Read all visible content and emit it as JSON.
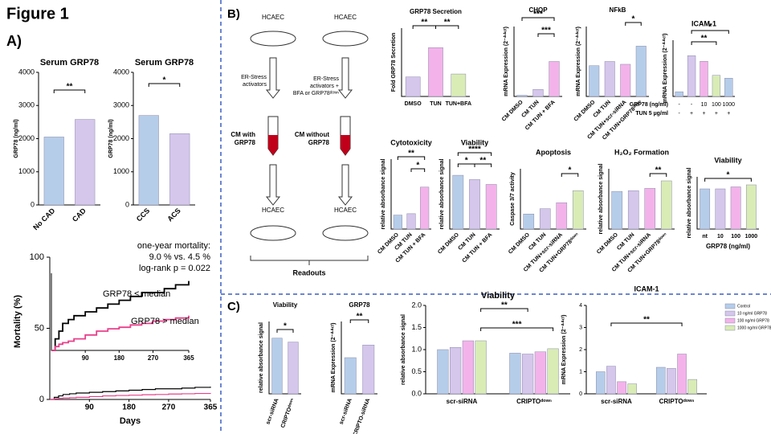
{
  "figure_title": "Figure 1",
  "panel_labels": [
    "A)",
    "B)",
    "C)"
  ],
  "schematic": {
    "top_left": "HCAEC",
    "top_right": "HCAEC",
    "arrow_left": [
      "ER-Stress",
      "activators"
    ],
    "arrow_right": [
      "ER-Stress",
      "activators +",
      "BFA or GRP78ᵈᵒʷⁿ"
    ],
    "cm_left": [
      "CM with",
      "GRP78"
    ],
    "cm_right": [
      "CM without",
      "GRP78"
    ],
    "bottom_left": "HCAEC",
    "bottom_right": "HCAEC",
    "readouts": "Readouts"
  },
  "legend": {
    "names": [
      "Control",
      "10 ng/ml GRP78",
      "100 ng/ml GRP78",
      "1000 ng/ml GRP78"
    ],
    "colors": [
      "#b6cdea",
      "#d5c6ec",
      "#f3b3ea",
      "#d9ecb6"
    ]
  },
  "chart_data": [
    {
      "type": "bar",
      "title": "Serum GRP78",
      "ylabel": "GRP78 (ng/ml)",
      "categories": [
        "No CAD",
        "CAD"
      ],
      "values": [
        2050,
        2580
      ],
      "colors": [
        "#b6cdea",
        "#d5c6ec"
      ],
      "ylim": [
        0,
        4000
      ],
      "yticks": [
        0,
        1000,
        2000,
        3000,
        4000
      ],
      "significance": [
        "**"
      ]
    },
    {
      "type": "bar",
      "title": "Serum GRP78",
      "ylabel": "GRP78 (ng/ml)",
      "categories": [
        "CCS",
        "ACS"
      ],
      "values": [
        2700,
        2150
      ],
      "colors": [
        "#b6cdea",
        "#d5c6ec"
      ],
      "ylim": [
        0,
        4000
      ],
      "yticks": [
        0,
        1000,
        2000,
        3000,
        4000
      ],
      "significance": [
        "*"
      ]
    },
    {
      "type": "line",
      "ylabel": "Mortality (%)",
      "xlabel": "Days",
      "x": [
        0,
        10,
        20,
        30,
        45,
        60,
        90,
        120,
        150,
        180,
        210,
        240,
        270,
        300,
        330,
        365
      ],
      "series": [
        {
          "name": "GRP78 ≤ median",
          "color": "#000000",
          "values": [
            0,
            1.5,
            2.5,
            3.5,
            4,
            4.5,
            5,
            5.5,
            6,
            6.5,
            7,
            7.5,
            7.5,
            8,
            8.5,
            9
          ]
        },
        {
          "name": "GRP78 > median",
          "color": "#e8408a",
          "values": [
            0,
            0.5,
            0.8,
            1,
            1.2,
            1.5,
            2,
            2.5,
            2.8,
            3,
            3.3,
            3.5,
            3.8,
            4,
            4.2,
            4.5
          ]
        }
      ],
      "xlim": [
        0,
        365
      ],
      "xticks": [
        90,
        180,
        270,
        365
      ],
      "ylim": [
        0,
        100
      ],
      "yticks": [
        0,
        50,
        100
      ],
      "inset_ylim": [
        0,
        10
      ],
      "annotations": [
        "one-year mortality:",
        "9.0 % vs. 4.5 %",
        "log-rank p = 0.022"
      ]
    },
    {
      "type": "bar",
      "title": "GRP78 Secretion",
      "ylabel": "Fold GRP78 Secretion",
      "categories": [
        "DMSO",
        "TUN",
        "TUN+BFA"
      ],
      "values": [
        1.0,
        2.5,
        1.15
      ],
      "colors": [
        "#d5c6ec",
        "#f3b3ea",
        "#d9ecb6"
      ],
      "ylim": [
        0,
        3.5
      ],
      "significance": [
        "**",
        "**"
      ]
    },
    {
      "type": "bar",
      "title": "CHOP",
      "ylabel": "mRNA Expression (2⁻ᐞᐞᶜᵗ)",
      "categories": [
        "CM DMSO",
        "CM TUN",
        "CM TUN + BFA"
      ],
      "values": [
        5,
        30,
        150
      ],
      "colors": [
        "#b6cdea",
        "#d5c6ec",
        "#f3b3ea"
      ],
      "ylim": [
        0,
        300
      ],
      "significance": [
        "***",
        "***"
      ]
    },
    {
      "type": "bar",
      "title": "NFkB",
      "ylabel": "mRNA Expression (2⁻ᐞᐞᶜᵗ)",
      "categories": [
        "CM DMSO",
        "CM TUN",
        "CM TUN+scr-siRNA",
        "CM TUN+GRP78ᵈᵒʷⁿ"
      ],
      "values": [
        1.1,
        1.25,
        1.15,
        1.8
      ],
      "colors": [
        "#b6cdea",
        "#d5c6ec",
        "#f3b3ea",
        "#b6cdea"
      ],
      "ylim": [
        0,
        2.5
      ],
      "significance": [
        "*"
      ]
    },
    {
      "type": "bar",
      "title": "ICAM-1",
      "ylabel": "mRNA Expression (2⁻ᐞᐞᶜᵗ)",
      "values": [
        1,
        8.7,
        7.5,
        4.5,
        3.9
      ],
      "colors": [
        "#b6cdea",
        "#d5c6ec",
        "#f3b3ea",
        "#d9ecb6",
        "#b6cdea"
      ],
      "ylim": [
        0,
        12
      ],
      "significance": [
        "**",
        "*",
        "**"
      ],
      "table_rows": [
        {
          "label": "GRP78 (ng/ml)",
          "cells": [
            "-",
            "-",
            "10",
            "100",
            "1000"
          ]
        },
        {
          "label": "TUN 5 µg/ml",
          "cells": [
            "-",
            "+",
            "+",
            "+",
            "+"
          ]
        }
      ]
    },
    {
      "type": "bar",
      "title": "Cytotoxicity",
      "ylabel": "relative absorbance signal",
      "categories": [
        "CM DMSO",
        "CM TUN",
        "CM TUN + BFA"
      ],
      "values": [
        1,
        1.1,
        3.0
      ],
      "colors": [
        "#b6cdea",
        "#d5c6ec",
        "#f3b3ea"
      ],
      "ylim": [
        0,
        5
      ],
      "significance": [
        "**",
        "*"
      ]
    },
    {
      "type": "bar",
      "title": "Viability",
      "ylabel": "relative absorbance signal",
      "categories": [
        "CM DMSO",
        "CM TUN",
        "CM TUN + BFA"
      ],
      "values": [
        1.0,
        0.92,
        0.83
      ],
      "colors": [
        "#b6cdea",
        "#d5c6ec",
        "#f3b3ea"
      ],
      "ylim": [
        0,
        1.3
      ],
      "significance": [
        "****",
        "*",
        "**"
      ]
    },
    {
      "type": "bar",
      "title": "Apoptosis",
      "ylabel": "Caspase 3/7 activity",
      "categories": [
        "CM DMSO",
        "CM TUN",
        "CM TUN+scr-siRNA",
        "CM TUN+GRP78ᵈᵒʷⁿ"
      ],
      "values": [
        1.0,
        1.35,
        1.75,
        2.55
      ],
      "colors": [
        "#b6cdea",
        "#d5c6ec",
        "#f3b3ea",
        "#d9ecb6"
      ],
      "ylim": [
        0,
        4
      ],
      "significance": [
        "*"
      ]
    },
    {
      "type": "bar",
      "title": "H₂O₂ Formation",
      "ylabel": "relative absorbance signal",
      "categories": [
        "CM DMSO",
        "CM TUN",
        "CM TUN+scr-siRNA",
        "CM TUN+GRP78ᵈᵒʷⁿ"
      ],
      "values": [
        1.0,
        1.02,
        1.08,
        1.28
      ],
      "colors": [
        "#b6cdea",
        "#d5c6ec",
        "#f3b3ea",
        "#d9ecb6"
      ],
      "ylim": [
        0,
        1.6
      ],
      "significance": [
        "**"
      ]
    },
    {
      "type": "bar",
      "title": "Viability",
      "ylabel": "relative absorbance signal",
      "xlabel": "GRP78 (ng/ml)",
      "categories": [
        "nt",
        "10",
        "100",
        "1000"
      ],
      "values": [
        1.0,
        1.0,
        1.05,
        1.1
      ],
      "colors": [
        "#b6cdea",
        "#d5c6ec",
        "#f3b3ea",
        "#d9ecb6"
      ],
      "ylim": [
        0,
        1.3
      ],
      "significance": [
        "*"
      ]
    },
    {
      "type": "bar",
      "title": "Viability",
      "ylabel": "relative absorbance signal",
      "categories": [
        "scr-siRNA",
        "CRIPTOᵈᵒʷⁿ"
      ],
      "values": [
        1.0,
        0.93
      ],
      "colors": [
        "#b6cdea",
        "#d5c6ec"
      ],
      "ylim": [
        0,
        1.3
      ],
      "significance": [
        "*"
      ]
    },
    {
      "type": "bar",
      "title": "GRP78",
      "ylabel": "mRNA Expression (2⁻ᐞᐞᶜᵗ)",
      "categories": [
        "scr-siRNA",
        "CRIPTO-siRNA"
      ],
      "values": [
        1.0,
        1.35
      ],
      "colors": [
        "#b6cdea",
        "#d5c6ec"
      ],
      "ylim": [
        0,
        2
      ],
      "significance": [
        "**"
      ]
    },
    {
      "type": "grouped_bar",
      "title": "Viability",
      "ylabel": "relative absorbance signal",
      "categories": [
        "scr-siRNA",
        "CRIPTOᵈᵒʷⁿ"
      ],
      "series": [
        {
          "name": "Control",
          "color": "#b6cdea",
          "values": [
            1.0,
            0.92
          ]
        },
        {
          "name": "10 ng/ml GRP78",
          "color": "#d5c6ec",
          "values": [
            1.05,
            0.9
          ]
        },
        {
          "name": "100 ng/ml GRP78",
          "color": "#f3b3ea",
          "values": [
            1.2,
            0.95
          ]
        },
        {
          "name": "1000 ng/ml GRP78",
          "color": "#d9ecb6",
          "values": [
            1.2,
            1.02
          ]
        }
      ],
      "ylim": [
        0,
        2
      ],
      "yticks": [
        {
          "value": 0,
          "label": "0.0"
        },
        {
          "value": 0.5,
          "label": "0.5"
        },
        {
          "value": 1,
          "label": "1.0"
        },
        {
          "value": 1.5,
          "label": "1.5"
        },
        {
          "value": 2,
          "label": "2.0"
        }
      ],
      "significance": [
        "**",
        "***"
      ]
    },
    {
      "type": "grouped_bar",
      "title": "ICAM-1",
      "ylabel": "mRNA Expression (2⁻ᐞᐞᶜᵗ)",
      "categories": [
        "scr-siRNA",
        "CRIPTOᵈᵒʷⁿ"
      ],
      "series": [
        {
          "name": "Control",
          "color": "#b6cdea",
          "values": [
            1.0,
            1.2
          ]
        },
        {
          "name": "10 ng/ml GRP78",
          "color": "#d5c6ec",
          "values": [
            1.25,
            1.15
          ]
        },
        {
          "name": "100 ng/ml GRP78",
          "color": "#f3b3ea",
          "values": [
            0.55,
            1.8
          ]
        },
        {
          "name": "1000 ng/ml GRP78",
          "color": "#d9ecb6",
          "values": [
            0.45,
            0.65
          ]
        }
      ],
      "ylim": [
        0,
        4
      ],
      "yticks": [
        0,
        1,
        2,
        3,
        4
      ],
      "significance": [
        "**"
      ]
    }
  ]
}
